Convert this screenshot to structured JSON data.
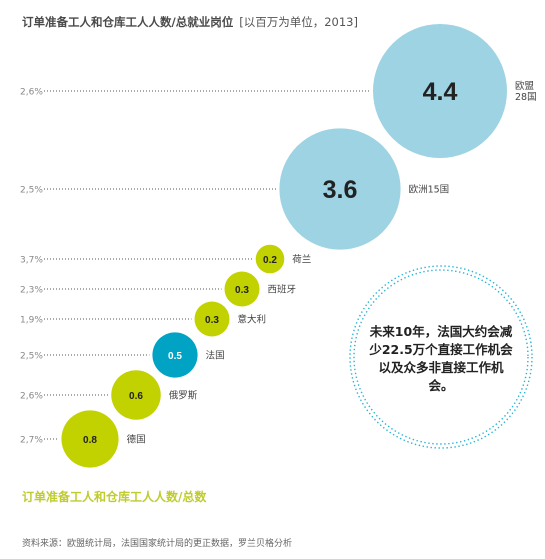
{
  "header": {
    "title": "订单准备工人和仓库工人人数/总就业岗位",
    "subtitle": "[以百万为单位，2013]"
  },
  "chart_data": {
    "type": "scatter",
    "title": "订单准备工人和仓库工人人数/总就业岗位 [以百万为单位，2013]",
    "xlabel": "订单准备工人和仓库工人人数/总数",
    "ylabel": "",
    "size_unit": "百万",
    "points": [
      {
        "label": "欧盟28国",
        "share": "2,6%",
        "value": 4.4,
        "label_lines": [
          "欧盟",
          "28国"
        ]
      },
      {
        "label": "欧洲15国",
        "share": "2,5%",
        "value": 3.6,
        "label_lines": [
          "欧洲15国"
        ]
      },
      {
        "label": "荷兰",
        "share": "3,7%",
        "value": 0.2,
        "label_lines": [
          "荷兰"
        ]
      },
      {
        "label": "西班牙",
        "share": "2,3%",
        "value": 0.3,
        "label_lines": [
          "西班牙"
        ]
      },
      {
        "label": "意大利",
        "share": "1,9%",
        "value": 0.3,
        "label_lines": [
          "意大利"
        ]
      },
      {
        "label": "法国",
        "share": "2,5%",
        "value": 0.5,
        "label_lines": [
          "法国"
        ]
      },
      {
        "label": "俄罗斯",
        "share": "2,6%",
        "value": 0.6,
        "label_lines": [
          "俄罗斯"
        ]
      },
      {
        "label": "德国",
        "share": "2,7%",
        "value": 0.8,
        "label_lines": [
          "德国"
        ]
      }
    ],
    "colors": {
      "large": "#9dd3e3",
      "country": "#c2d100",
      "highlight": "#00a3c4",
      "dotted_circle": "#29b3d4",
      "leader": "#555555"
    },
    "annotation": {
      "lines": [
        "未来10年，法国大约会减",
        "少22.5万个直接工作机会",
        "以及众多非直接工作机",
        "会。"
      ]
    }
  },
  "footer": {
    "source": "资料来源：欧盟统计局，法国国家统计局的更正数据，罗兰贝格分析"
  }
}
